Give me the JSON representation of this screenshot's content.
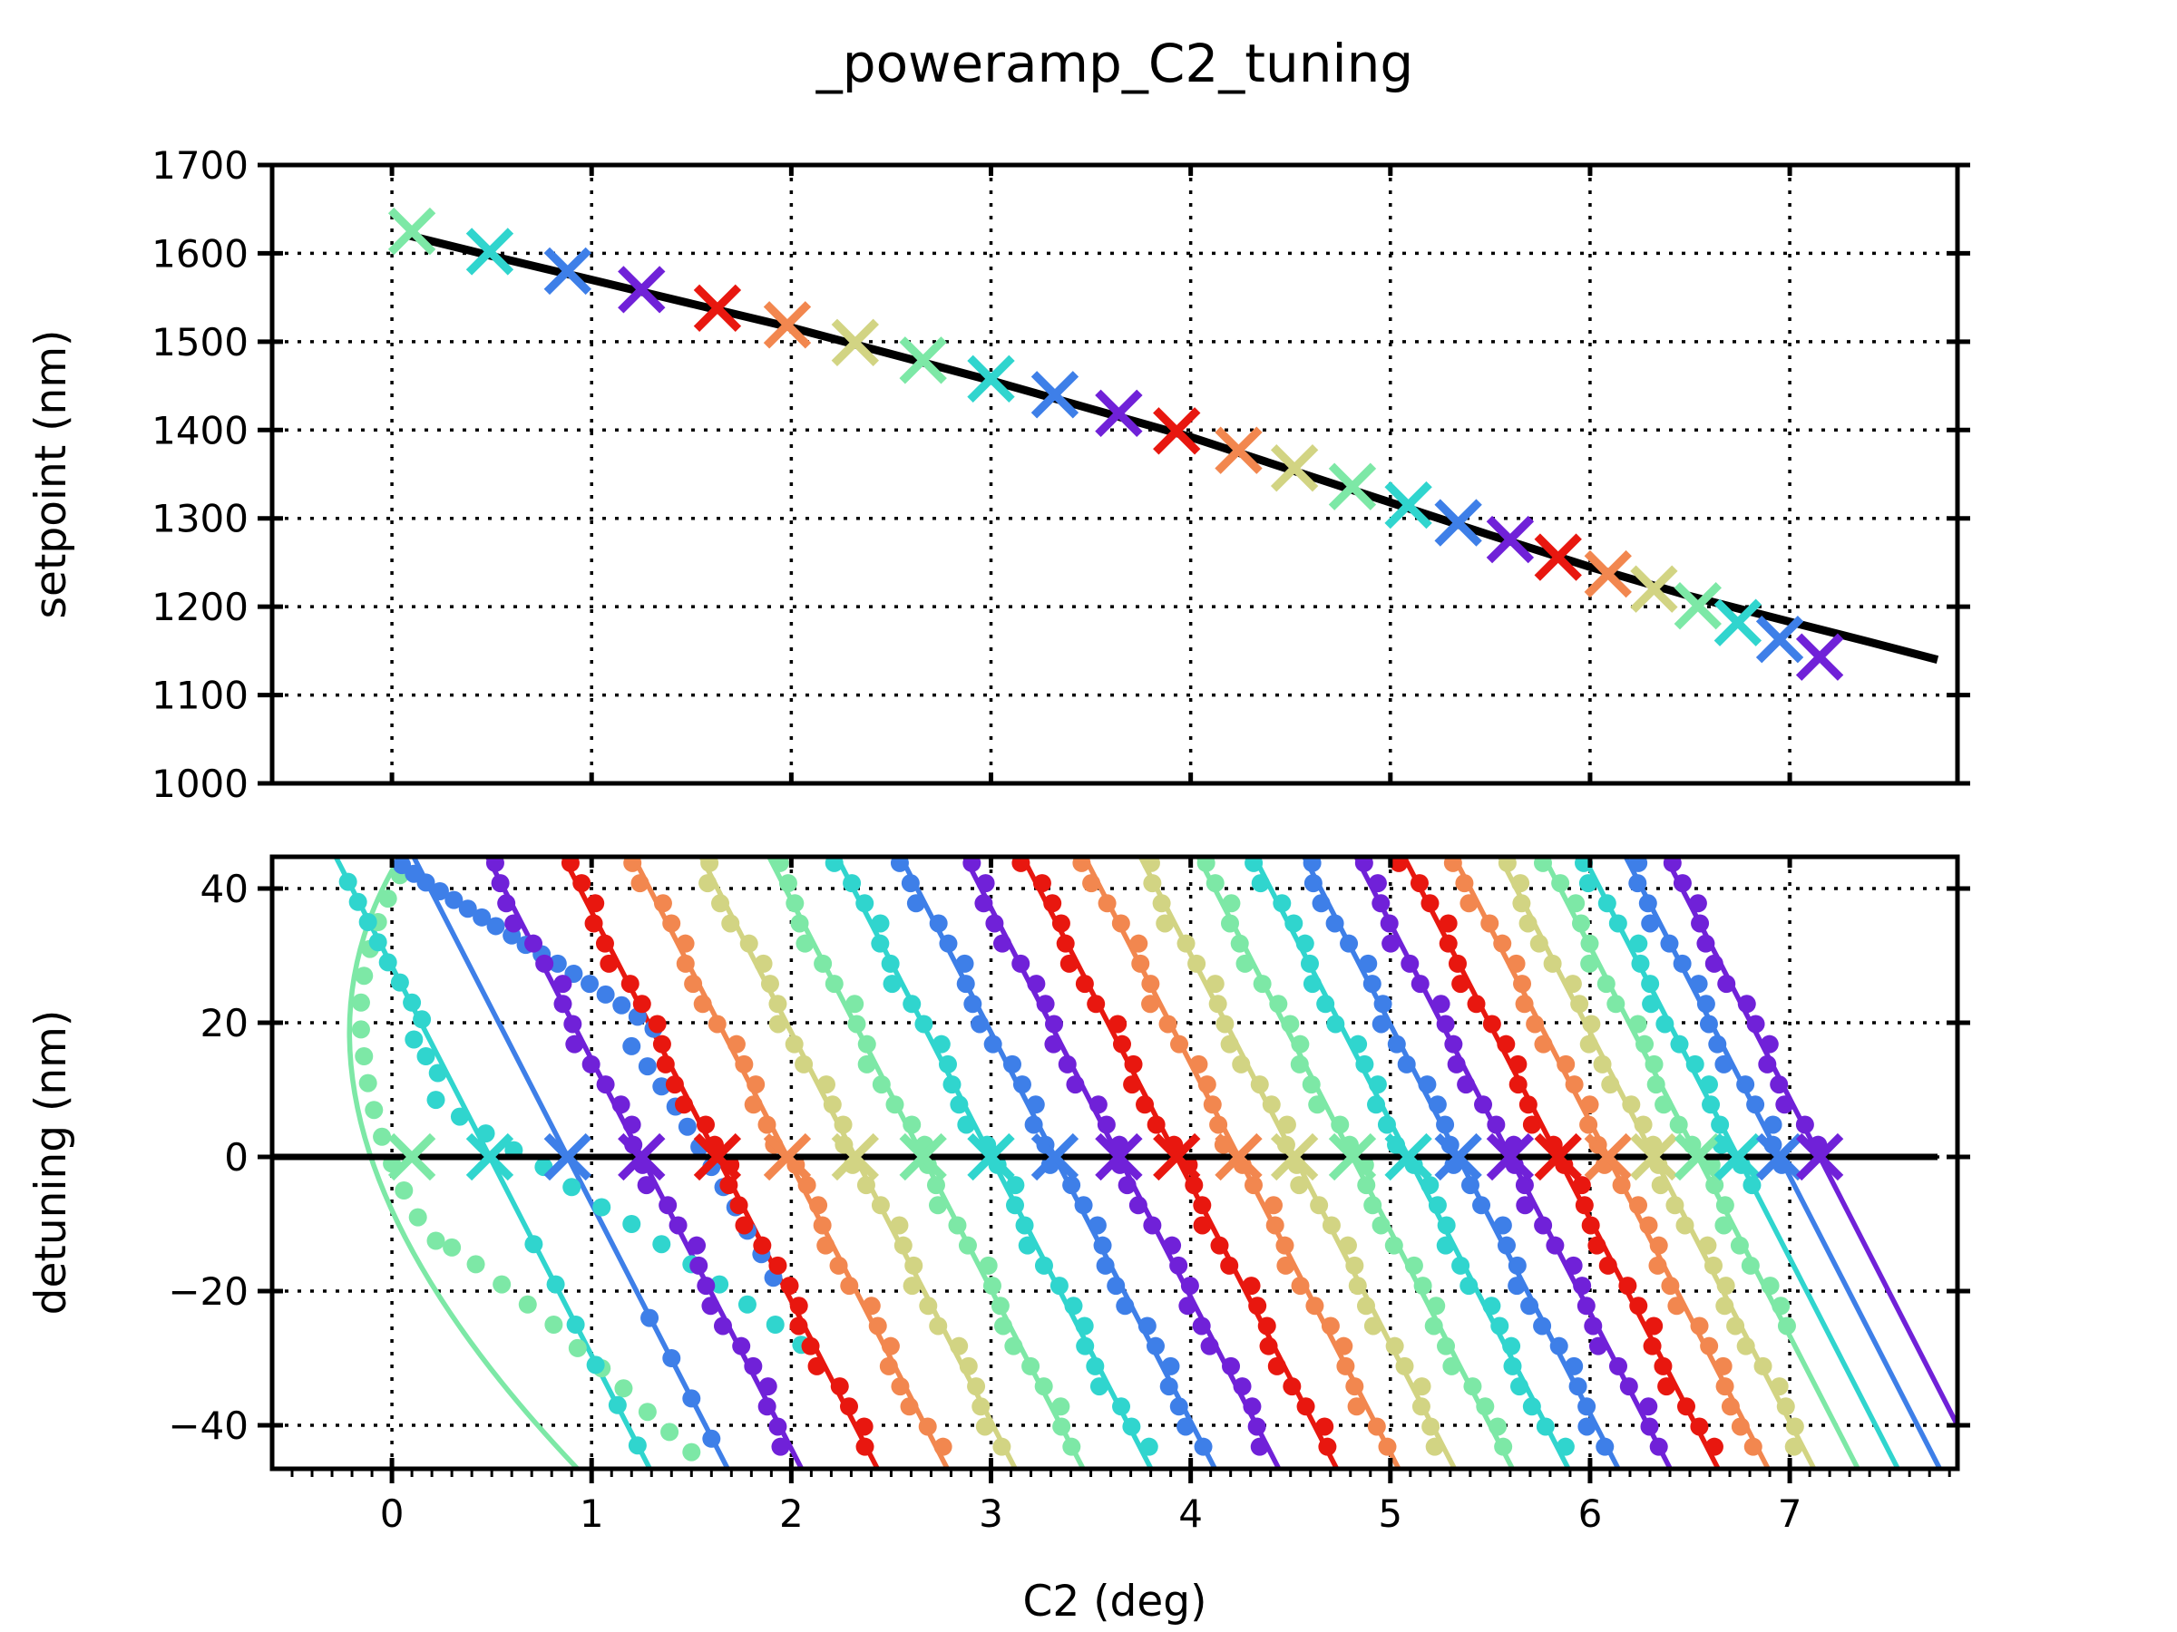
{
  "title": "_poweramp_C2_tuning",
  "axes": {
    "top": {
      "ylabel": "setpoint (nm)",
      "yticks": [
        "1700",
        "1600",
        "1500",
        "1400",
        "1300",
        "1200",
        "1100",
        "1000"
      ],
      "ytick_values": [
        1700,
        1600,
        1500,
        1400,
        1300,
        1200,
        1100,
        1000
      ],
      "xtick_values": [
        0,
        1,
        2,
        3,
        4,
        5,
        6,
        7
      ]
    },
    "bottom": {
      "ylabel": "detuning (nm)",
      "xlabel": "C2 (deg)",
      "yticks": [
        "40",
        "20",
        "0",
        "−20",
        "−40"
      ],
      "ytick_values": [
        40,
        20,
        0,
        -20,
        -40
      ],
      "xticks": [
        "0",
        "1",
        "2",
        "3",
        "4",
        "5",
        "6",
        "7"
      ],
      "xtick_values": [
        0,
        1,
        2,
        3,
        4,
        5,
        6,
        7
      ]
    }
  },
  "palette": {
    "green": "#7DE8A6",
    "cyan": "#30D5CE",
    "blue": "#3E7FE8",
    "purple": "#7021D8",
    "red": "#E8170F",
    "orange": "#F2874F",
    "khaki": "#D2D483",
    "black": "#000000"
  },
  "chart_data": [
    {
      "type": "scatter",
      "title": "_poweramp_C2_tuning",
      "ylabel": "setpoint (nm)",
      "xlim": [
        -0.6,
        7.84
      ],
      "ylim": [
        1000,
        1700
      ],
      "grid": true,
      "fit_line": [
        [
          0.07,
          1621
        ],
        [
          0.5,
          1597
        ],
        [
          1,
          1570
        ],
        [
          1.5,
          1543
        ],
        [
          2,
          1516
        ],
        [
          2.5,
          1486
        ],
        [
          3,
          1456
        ],
        [
          3.5,
          1424
        ],
        [
          4,
          1392
        ],
        [
          4.5,
          1355
        ],
        [
          5,
          1318
        ],
        [
          5.5,
          1281
        ],
        [
          6,
          1245
        ],
        [
          6.5,
          1212
        ],
        [
          7,
          1183
        ],
        [
          7.4,
          1160
        ],
        [
          7.74,
          1140
        ]
      ],
      "markers": [
        {
          "c2": 0.1,
          "setpoint": 1625,
          "color": "green"
        },
        {
          "c2": 0.49,
          "setpoint": 1602,
          "color": "cyan"
        },
        {
          "c2": 0.88,
          "setpoint": 1580,
          "color": "blue"
        },
        {
          "c2": 1.25,
          "setpoint": 1559,
          "color": "purple"
        },
        {
          "c2": 1.63,
          "setpoint": 1538,
          "color": "red"
        },
        {
          "c2": 1.98,
          "setpoint": 1519,
          "color": "orange"
        },
        {
          "c2": 2.32,
          "setpoint": 1499,
          "color": "khaki"
        },
        {
          "c2": 2.66,
          "setpoint": 1479,
          "color": "green"
        },
        {
          "c2": 3.0,
          "setpoint": 1458,
          "color": "cyan"
        },
        {
          "c2": 3.32,
          "setpoint": 1440,
          "color": "blue"
        },
        {
          "c2": 3.64,
          "setpoint": 1419,
          "color": "purple"
        },
        {
          "c2": 3.93,
          "setpoint": 1399,
          "color": "red"
        },
        {
          "c2": 4.24,
          "setpoint": 1377,
          "color": "orange"
        },
        {
          "c2": 4.52,
          "setpoint": 1357,
          "color": "khaki"
        },
        {
          "c2": 4.81,
          "setpoint": 1336,
          "color": "green"
        },
        {
          "c2": 5.09,
          "setpoint": 1315,
          "color": "cyan"
        },
        {
          "c2": 5.34,
          "setpoint": 1295,
          "color": "blue"
        },
        {
          "c2": 5.6,
          "setpoint": 1276,
          "color": "purple"
        },
        {
          "c2": 5.84,
          "setpoint": 1256,
          "color": "red"
        },
        {
          "c2": 6.09,
          "setpoint": 1237,
          "color": "orange"
        },
        {
          "c2": 6.32,
          "setpoint": 1220,
          "color": "khaki"
        },
        {
          "c2": 6.54,
          "setpoint": 1201,
          "color": "green"
        },
        {
          "c2": 6.74,
          "setpoint": 1182,
          "color": "cyan"
        },
        {
          "c2": 6.95,
          "setpoint": 1163,
          "color": "blue"
        },
        {
          "c2": 7.15,
          "setpoint": 1143,
          "color": "purple"
        }
      ]
    },
    {
      "type": "scatter",
      "ylabel": "detuning (nm)",
      "xlabel": "C2 (deg)",
      "xlim": [
        -0.6,
        7.84
      ],
      "ylim": [
        -46.5,
        44.7
      ],
      "grid": true,
      "zero_line": {
        "y": 0,
        "x_start": -0.6,
        "x_end": 7.74
      },
      "slope_nm_per_deg": -58,
      "series": [
        {
          "c": 0.1,
          "color": "green",
          "fit": "curve",
          "dots": "custom"
        },
        {
          "c": 0.49,
          "color": "cyan",
          "dots": "custom"
        },
        {
          "c": 0.88,
          "color": "blue",
          "dots": "custom"
        },
        {
          "c": 1.25,
          "color": "purple"
        },
        {
          "c": 1.63,
          "color": "red"
        },
        {
          "c": 1.98,
          "color": "orange"
        },
        {
          "c": 2.32,
          "color": "khaki"
        },
        {
          "c": 2.66,
          "color": "green"
        },
        {
          "c": 3.0,
          "color": "cyan"
        },
        {
          "c": 3.32,
          "color": "blue"
        },
        {
          "c": 3.64,
          "color": "purple"
        },
        {
          "c": 3.93,
          "color": "red"
        },
        {
          "c": 4.24,
          "color": "orange"
        },
        {
          "c": 4.52,
          "color": "khaki"
        },
        {
          "c": 4.81,
          "color": "green"
        },
        {
          "c": 5.09,
          "color": "cyan"
        },
        {
          "c": 5.34,
          "color": "blue"
        },
        {
          "c": 5.6,
          "color": "purple"
        },
        {
          "c": 5.84,
          "color": "red"
        },
        {
          "c": 6.09,
          "color": "orange"
        },
        {
          "c": 6.32,
          "color": "khaki"
        },
        {
          "c": 6.54,
          "color": "green",
          "dot_min_y": -26
        },
        {
          "c": 6.74,
          "color": "cyan",
          "dot_min_y": -7
        },
        {
          "c": 6.95,
          "color": "blue",
          "dot_min_y": -4
        },
        {
          "c": 7.15,
          "color": "purple",
          "dot_min_y": -1
        }
      ],
      "curve_fit_green": {
        "start": [
          0.04,
          44.7
        ],
        "ctrl": [
          -0.75,
          6
        ],
        "end": [
          0.93,
          -46.5
        ]
      },
      "custom_dots": {
        "green0": [
          [
            0.04,
            42
          ],
          [
            -0.02,
            38.5
          ],
          [
            -0.07,
            35
          ],
          [
            -0.11,
            31
          ],
          [
            -0.14,
            27
          ],
          [
            -0.155,
            23
          ],
          [
            -0.155,
            19
          ],
          [
            -0.14,
            15
          ],
          [
            -0.12,
            11
          ],
          [
            -0.09,
            7
          ],
          [
            -0.05,
            3
          ],
          [
            0.0,
            -1
          ],
          [
            0.06,
            -5
          ],
          [
            0.13,
            -9
          ],
          [
            0.22,
            -12.5
          ],
          [
            0.3,
            -13.5
          ],
          [
            0.42,
            -16
          ],
          [
            0.55,
            -19
          ],
          [
            0.68,
            -22
          ],
          [
            0.81,
            -25
          ],
          [
            0.93,
            -28.5
          ],
          [
            1.05,
            -31.5
          ],
          [
            1.16,
            -34.5
          ],
          [
            1.28,
            -38
          ],
          [
            1.39,
            -41
          ],
          [
            1.5,
            -44
          ]
        ],
        "cyan1": [
          [
            -0.22,
            41
          ],
          [
            -0.17,
            38
          ],
          [
            -0.12,
            35
          ],
          [
            -0.07,
            32
          ],
          [
            -0.02,
            29
          ],
          [
            0.04,
            26
          ],
          [
            0.1,
            23
          ],
          [
            0.15,
            20.5
          ],
          [
            0.11,
            17.5
          ],
          [
            0.17,
            15
          ],
          [
            0.23,
            12.5
          ],
          [
            0.22,
            8.5
          ],
          [
            0.34,
            6
          ],
          [
            0.47,
            3.5
          ],
          [
            0.61,
            1
          ],
          [
            0.76,
            -1.5
          ],
          [
            0.9,
            -4.5
          ],
          [
            1.05,
            -7.5
          ],
          [
            1.2,
            -10
          ],
          [
            1.35,
            -13
          ],
          [
            1.5,
            -16
          ],
          [
            1.64,
            -19
          ],
          [
            1.78,
            -22
          ],
          [
            1.92,
            -25
          ],
          [
            2.05,
            -28
          ],
          [
            0.71,
            -13
          ],
          [
            0.82,
            -19
          ],
          [
            0.92,
            -25
          ],
          [
            1.02,
            -31
          ],
          [
            1.13,
            -37
          ],
          [
            1.23,
            -43
          ]
        ],
        "blue2": [
          [
            0.05,
            43.5
          ],
          [
            0.11,
            42.2
          ],
          [
            0.17,
            40.9
          ],
          [
            0.24,
            39.6
          ],
          [
            0.31,
            38.3
          ],
          [
            0.38,
            37
          ],
          [
            0.45,
            35.7
          ],
          [
            0.52,
            34.4
          ],
          [
            0.6,
            33
          ],
          [
            0.67,
            31.6
          ],
          [
            0.75,
            30.2
          ],
          [
            0.83,
            28.8
          ],
          [
            0.91,
            27.3
          ],
          [
            0.99,
            25.8
          ],
          [
            1.07,
            24.2
          ],
          [
            1.15,
            22.6
          ],
          [
            1.23,
            20.9
          ],
          [
            1.31,
            19.1
          ],
          [
            1.2,
            16.5
          ],
          [
            1.28,
            13.5
          ],
          [
            1.35,
            10.5
          ],
          [
            1.42,
            7.5
          ],
          [
            1.48,
            4.5
          ],
          [
            1.54,
            1.5
          ],
          [
            1.6,
            -1.5
          ],
          [
            1.66,
            -4.5
          ],
          [
            1.72,
            -7.5
          ],
          [
            1.78,
            -11
          ],
          [
            1.85,
            -14.5
          ],
          [
            1.91,
            -18
          ],
          [
            1.29,
            -24
          ],
          [
            1.4,
            -30
          ],
          [
            1.5,
            -36
          ],
          [
            1.6,
            -42
          ]
        ]
      }
    }
  ]
}
